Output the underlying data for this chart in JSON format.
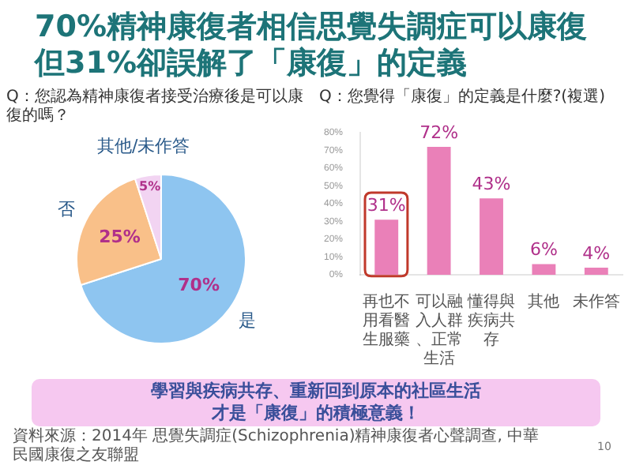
{
  "chart_data": [
    {
      "type": "pie",
      "title": "70%精神康復者相信思覺失調症可以康復但31%卻誤解了「康復」的定義",
      "subtitle": "Q：您認為精神康復者接受治療後是可以康復的嗎？",
      "categories": [
        "是",
        "否",
        "其他/未作答"
      ],
      "values": [
        70,
        25,
        5
      ],
      "colors": [
        "#8ec5f0",
        "#f9c089",
        "#f2d4f2"
      ],
      "value_labels": [
        "70%",
        "25%",
        "5%"
      ],
      "legend": false
    },
    {
      "type": "bar",
      "subtitle": "Q：您覺得「康復」的定義是什麼?(複選)",
      "categories": [
        "再也不用看醫生服藥",
        "可以融入人群、正常生活",
        "懂得與疾病共存",
        "其他",
        "未作答"
      ],
      "values": [
        31,
        72,
        43,
        6,
        4
      ],
      "color": "#ea80b8",
      "value_labels": [
        "31%",
        "72%",
        "43%",
        "6%",
        "4%"
      ],
      "ylim": [
        0,
        80
      ],
      "yticks": [
        {
          "value": 0,
          "label": "0%"
        },
        {
          "value": 10,
          "label": "10%"
        },
        {
          "value": 20,
          "label": "20%"
        },
        {
          "value": 30,
          "label": "30%"
        },
        {
          "value": 40,
          "label": "40%"
        },
        {
          "value": 50,
          "label": "50%"
        },
        {
          "value": 60,
          "label": "60%"
        },
        {
          "value": 70,
          "label": "70%"
        },
        {
          "value": 80,
          "label": "80%"
        }
      ],
      "grid": false,
      "legend": false,
      "annotations": [
        "學習與疾病共存、重新回到原本的社區生活才是「康復」的積極意義！",
        "資料來源：2014年 思覺失調症(Schizophrenia)精神康復者心聲調查, 中華民國康復之友聯盟",
        "10"
      ]
    }
  ]
}
